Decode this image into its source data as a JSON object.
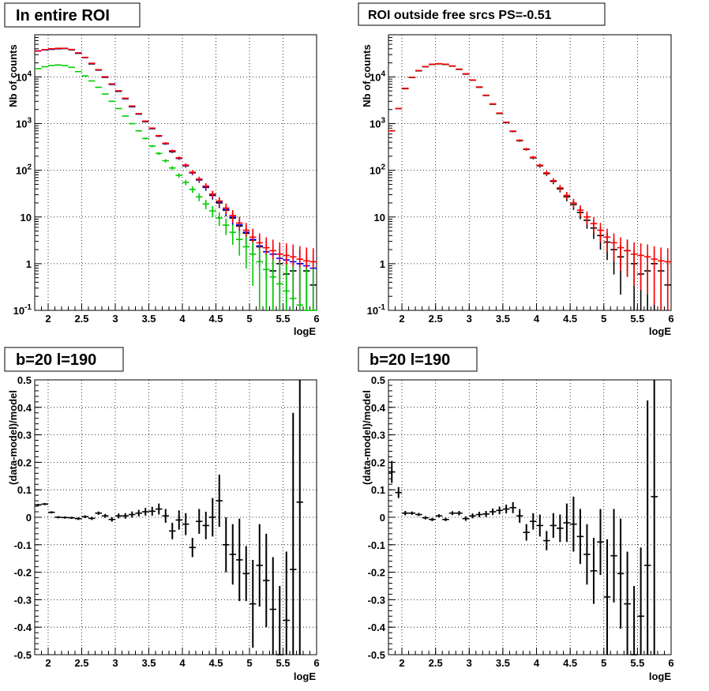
{
  "chart_data": [
    {
      "type": "scatter",
      "title": "In entire ROI",
      "xlabel": "logE",
      "ylabel": "Nb of counts",
      "xlim": [
        1.8,
        6.0
      ],
      "ylim": [
        0.1,
        80000
      ],
      "yscale": "log",
      "grid": true,
      "x_ticks": [
        "2",
        "2.5",
        "3",
        "3.5",
        "4",
        "4.5",
        "5",
        "5.5",
        "6"
      ],
      "y_ticks": [
        "10^-1",
        "1",
        "10",
        "10^2",
        "10^3",
        "10^4"
      ],
      "x": [
        1.85,
        1.95,
        2.05,
        2.15,
        2.25,
        2.35,
        2.45,
        2.55,
        2.65,
        2.75,
        2.85,
        2.95,
        3.05,
        3.15,
        3.25,
        3.35,
        3.45,
        3.55,
        3.65,
        3.75,
        3.85,
        3.95,
        4.05,
        4.15,
        4.25,
        4.35,
        4.45,
        4.55,
        4.65,
        4.75,
        4.85,
        4.95,
        5.05,
        5.15,
        5.25,
        5.35,
        5.45,
        5.55,
        5.65,
        5.75,
        5.85,
        5.95
      ],
      "series": [
        {
          "color": "#000000",
          "values": [
            36000,
            38000,
            39000,
            40000,
            40500,
            38000,
            32000,
            26000,
            19000,
            14000,
            9800,
            6900,
            4900,
            3400,
            2300,
            1600,
            1100,
            780,
            540,
            370,
            250,
            180,
            125,
            88,
            62,
            43,
            29,
            20,
            14,
            9.5,
            6.4,
            4.5,
            3.2,
            2.3,
            1.8,
            0.7,
            1.0,
            0.6,
            0.7,
            1.0,
            0.7,
            0.35
          ]
        },
        {
          "color": "#0000ff",
          "values": [
            36000,
            38000,
            39500,
            40500,
            40800,
            38500,
            32500,
            26000,
            19500,
            14200,
            10000,
            7000,
            5000,
            3450,
            2350,
            1620,
            1120,
            790,
            545,
            375,
            258,
            182,
            127,
            89,
            63,
            44,
            30,
            21,
            14.5,
            10,
            6.8,
            4.7,
            3.3,
            2.4,
            1.8,
            1.6,
            1.3,
            1.2,
            1.1,
            1.0,
            0.9,
            0.8
          ]
        },
        {
          "color": "#ff0000",
          "values": [
            36000,
            38500,
            40000,
            41000,
            41000,
            38700,
            32800,
            26200,
            19600,
            14300,
            10100,
            7100,
            5050,
            3500,
            2380,
            1640,
            1130,
            800,
            552,
            380,
            262,
            185,
            129,
            91,
            65,
            46,
            31,
            22,
            15.5,
            10.8,
            7.4,
            5.2,
            3.7,
            2.8,
            2.2,
            1.9,
            1.6,
            1.5,
            1.4,
            1.25,
            1.15,
            1.1
          ]
        },
        {
          "color": "#00cc00",
          "values": [
            15000,
            16500,
            17500,
            18000,
            17500,
            16000,
            13000,
            10500,
            8200,
            6000,
            4300,
            3000,
            2100,
            1450,
            1000,
            700,
            480,
            330,
            230,
            160,
            112,
            78,
            55,
            39,
            27,
            19,
            13.5,
            9.5,
            6.7,
            4.7,
            3.3,
            2.3,
            1.6,
            1.1,
            0.75,
            0.52,
            0.37,
            0.26,
            0.18,
            0.13,
            0.09,
            0.065
          ]
        }
      ]
    },
    {
      "type": "scatter",
      "title": "ROI outside free srcs PS=-0.51",
      "xlabel": "logE",
      "ylabel": "Nb of counts",
      "xlim": [
        1.8,
        6.0
      ],
      "ylim": [
        0.1,
        80000
      ],
      "yscale": "log",
      "grid": true,
      "x_ticks": [
        "2",
        "2.5",
        "3",
        "3.5",
        "4",
        "4.5",
        "5",
        "5.5",
        "6"
      ],
      "y_ticks": [
        "10^-1",
        "1",
        "10",
        "10^2",
        "10^3",
        "10^4"
      ],
      "x": [
        1.85,
        1.95,
        2.05,
        2.15,
        2.25,
        2.35,
        2.45,
        2.55,
        2.65,
        2.75,
        2.85,
        2.95,
        3.05,
        3.15,
        3.25,
        3.35,
        3.45,
        3.55,
        3.65,
        3.75,
        3.85,
        3.95,
        4.05,
        4.15,
        4.25,
        4.35,
        4.45,
        4.55,
        4.65,
        4.75,
        4.85,
        4.95,
        5.05,
        5.15,
        5.25,
        5.35,
        5.45,
        5.55,
        5.65,
        5.75,
        5.85,
        5.95
      ],
      "series": [
        {
          "color": "#000000",
          "values": [
            700,
            2100,
            5600,
            9700,
            13500,
            16500,
            18500,
            19000,
            18500,
            17000,
            14500,
            11500,
            8500,
            6000,
            4000,
            2600,
            1650,
            1050,
            680,
            430,
            280,
            185,
            125,
            85,
            58,
            40,
            27,
            18.5,
            12.5,
            8.5,
            5.8,
            4.0,
            2.9,
            2.0,
            1.4,
            1.9,
            1.0,
            0.6,
            0.7,
            1.0,
            0.7,
            0.35
          ]
        },
        {
          "color": "#ff0000",
          "values": [
            700,
            2100,
            5700,
            9800,
            13700,
            16700,
            18700,
            19200,
            18700,
            17200,
            14700,
            11700,
            8600,
            6100,
            4050,
            2650,
            1680,
            1070,
            690,
            440,
            285,
            190,
            128,
            88,
            60,
            42,
            29,
            20,
            14,
            10,
            7.2,
            5.2,
            3.7,
            2.8,
            2.2,
            1.9,
            1.6,
            1.5,
            1.4,
            1.25,
            1.15,
            1.1
          ]
        }
      ]
    },
    {
      "type": "scatter",
      "title": "b=20 l=190",
      "xlabel": "logE",
      "ylabel": "(data-model)/model",
      "xlim": [
        1.8,
        6.0
      ],
      "ylim": [
        -0.5,
        0.5
      ],
      "grid": true,
      "x_ticks": [
        "2",
        "2.5",
        "3",
        "3.5",
        "4",
        "4.5",
        "5",
        "5.5",
        "6"
      ],
      "y_ticks": [
        "-0.5",
        "-0.4",
        "-0.3",
        "-0.2",
        "-0.1",
        "0",
        "0.1",
        "0.2",
        "0.3",
        "0.4",
        "0.5"
      ],
      "x": [
        1.85,
        1.95,
        2.05,
        2.15,
        2.25,
        2.35,
        2.45,
        2.55,
        2.65,
        2.75,
        2.85,
        2.95,
        3.05,
        3.15,
        3.25,
        3.35,
        3.45,
        3.55,
        3.65,
        3.75,
        3.85,
        3.95,
        4.05,
        4.15,
        4.25,
        4.35,
        4.45,
        4.55,
        4.65,
        4.75,
        4.85,
        4.95,
        5.05,
        5.15,
        5.25,
        5.35,
        5.45,
        5.55,
        5.65,
        5.75
      ],
      "values": [
        0.045,
        0.048,
        0.018,
        0.0,
        -0.001,
        -0.002,
        -0.005,
        0.002,
        -0.004,
        0.015,
        0.005,
        -0.008,
        0.005,
        0.005,
        0.01,
        0.015,
        0.02,
        0.022,
        0.03,
        0.005,
        -0.05,
        -0.01,
        -0.025,
        -0.11,
        -0.015,
        -0.03,
        0.0,
        0.06,
        -0.1,
        -0.135,
        -0.155,
        -0.205,
        -0.315,
        -0.175,
        -0.23,
        -0.335,
        -0.5,
        -0.375,
        -0.19,
        0.055
      ],
      "errors": [
        0.004,
        0.004,
        0.004,
        0.004,
        0.004,
        0.004,
        0.005,
        0.005,
        0.006,
        0.006,
        0.007,
        0.008,
        0.009,
        0.01,
        0.011,
        0.012,
        0.014,
        0.016,
        0.02,
        0.025,
        0.03,
        0.035,
        0.04,
        0.035,
        0.045,
        0.05,
        0.07,
        0.095,
        0.1,
        0.11,
        0.15,
        0.1,
        0.16,
        0.15,
        0.17,
        0.19,
        0.25,
        0.25,
        0.57,
        0.7
      ]
    },
    {
      "type": "scatter",
      "title": "b=20 l=190",
      "xlabel": "logE",
      "ylabel": "(data-model)/model",
      "xlim": [
        1.8,
        6.0
      ],
      "ylim": [
        -0.5,
        0.5
      ],
      "grid": true,
      "x_ticks": [
        "2",
        "2.5",
        "3",
        "3.5",
        "4",
        "4.5",
        "5",
        "5.5",
        "6"
      ],
      "y_ticks": [
        "-0.5",
        "-0.4",
        "-0.3",
        "-0.2",
        "-0.1",
        "0",
        "0.1",
        "0.2",
        "0.3",
        "0.4",
        "0.5"
      ],
      "x": [
        1.85,
        1.95,
        2.05,
        2.15,
        2.25,
        2.35,
        2.45,
        2.55,
        2.65,
        2.75,
        2.85,
        2.95,
        3.05,
        3.15,
        3.25,
        3.35,
        3.45,
        3.55,
        3.65,
        3.75,
        3.85,
        3.95,
        4.05,
        4.15,
        4.25,
        4.35,
        4.45,
        4.55,
        4.65,
        4.75,
        4.85,
        4.95,
        5.05,
        5.15,
        5.25,
        5.35,
        5.45,
        5.55,
        5.65,
        5.75
      ],
      "values": [
        0.165,
        0.09,
        0.015,
        0.015,
        0.01,
        -0.002,
        -0.008,
        0.005,
        -0.008,
        0.015,
        0.015,
        -0.005,
        0.005,
        0.01,
        0.012,
        0.02,
        0.025,
        0.03,
        0.035,
        0.005,
        -0.055,
        -0.015,
        -0.03,
        -0.085,
        -0.03,
        -0.04,
        -0.02,
        -0.025,
        -0.07,
        -0.135,
        -0.195,
        -0.09,
        -0.29,
        -0.14,
        -0.205,
        -0.315,
        -0.5,
        -0.36,
        -0.175,
        0.075
      ],
      "errors": [
        0.04,
        0.02,
        0.008,
        0.006,
        0.006,
        0.006,
        0.006,
        0.006,
        0.006,
        0.007,
        0.008,
        0.008,
        0.009,
        0.01,
        0.011,
        0.012,
        0.014,
        0.016,
        0.02,
        0.025,
        0.03,
        0.03,
        0.04,
        0.035,
        0.045,
        0.05,
        0.07,
        0.1,
        0.1,
        0.11,
        0.12,
        0.12,
        0.21,
        0.17,
        0.2,
        0.19,
        0.25,
        0.25,
        0.6,
        0.7
      ]
    }
  ]
}
